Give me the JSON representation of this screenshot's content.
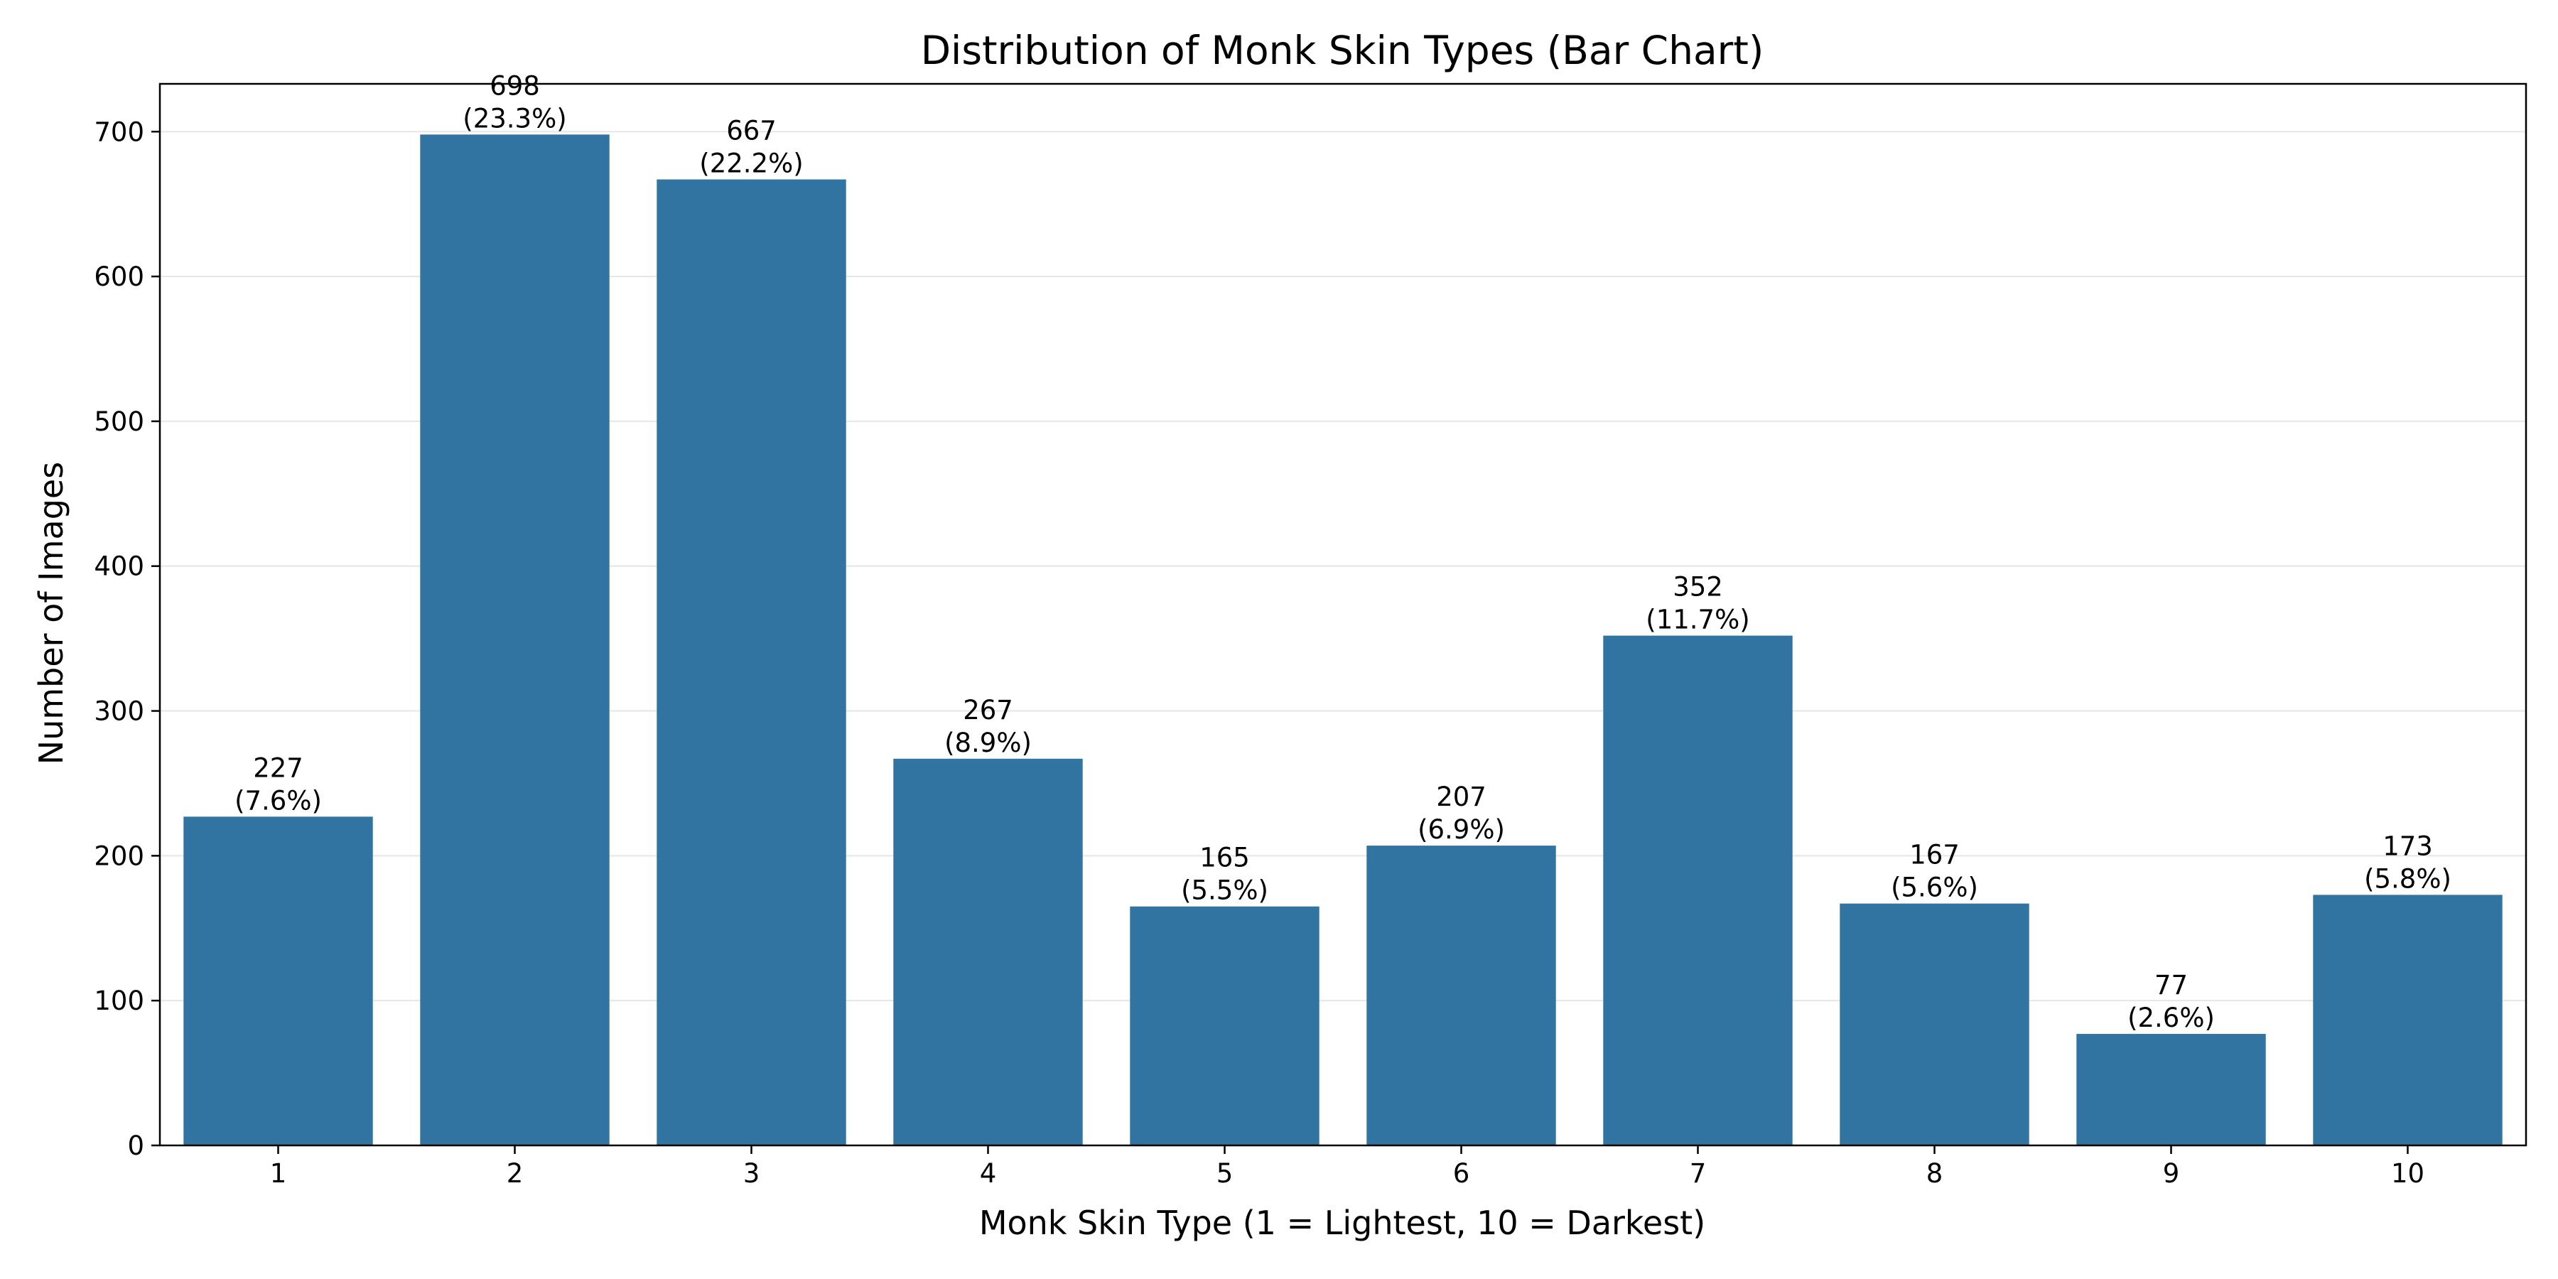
{
  "chart_data": {
    "type": "bar",
    "title": "Distribution of Monk Skin Types (Bar Chart)",
    "xlabel": "Monk Skin Type (1 = Lightest, 10 = Darkest)",
    "ylabel": "Number of Images",
    "categories": [
      "1",
      "2",
      "3",
      "4",
      "5",
      "6",
      "7",
      "8",
      "9",
      "10"
    ],
    "values": [
      227,
      698,
      667,
      267,
      165,
      207,
      352,
      167,
      77,
      173
    ],
    "value_labels": [
      "227",
      "698",
      "667",
      "267",
      "165",
      "207",
      "352",
      "167",
      "77",
      "173"
    ],
    "percent_labels": [
      "(7.6%)",
      "(23.3%)",
      "(22.2%)",
      "(8.9%)",
      "(5.5%)",
      "(6.9%)",
      "(11.7%)",
      "(5.6%)",
      "(2.6%)",
      "(5.8%)"
    ],
    "yticks": [
      0,
      100,
      200,
      300,
      400,
      500,
      600,
      700
    ],
    "ylim": [
      0,
      733
    ],
    "grid": "horizontal",
    "bar_color": "#3274a1",
    "grid_color": "#e6e6e6"
  }
}
